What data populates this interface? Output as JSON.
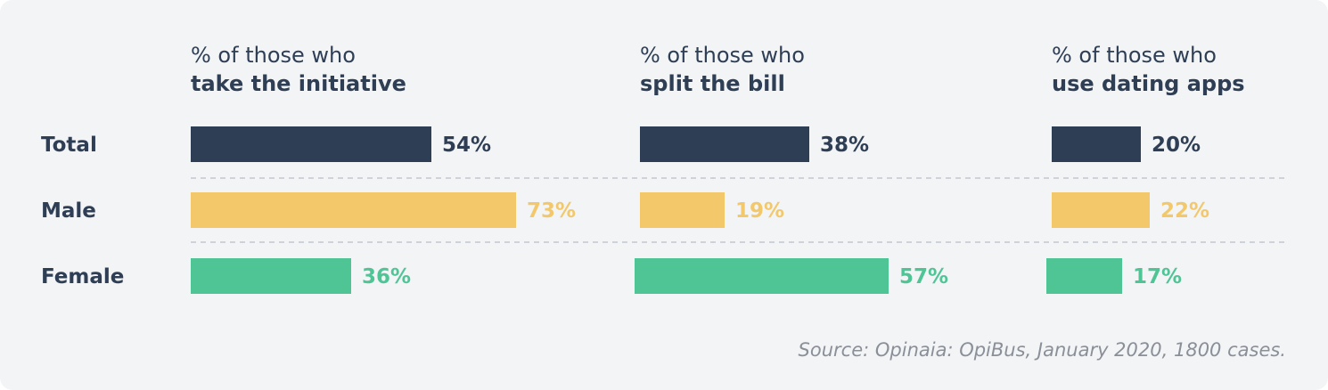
{
  "chart_data": {
    "type": "bar",
    "orientation": "horizontal",
    "categories": [
      "Total",
      "Male",
      "Female"
    ],
    "panels": [
      {
        "title_line1": "% of those who",
        "title_line2": "take the initiative",
        "values": [
          54,
          73,
          36
        ]
      },
      {
        "title_line1": "% of those who",
        "title_line2": "split the bill",
        "values": [
          38,
          19,
          57
        ]
      },
      {
        "title_line1": "% of those who",
        "title_line2": "use dating apps",
        "values": [
          20,
          22,
          17
        ]
      }
    ],
    "value_labels": [
      [
        "54%",
        "73%",
        "36%"
      ],
      [
        "38%",
        "19%",
        "57%"
      ],
      [
        "20%",
        "22%",
        "17%"
      ]
    ],
    "colors": [
      "#2e3e55",
      "#f2c86b",
      "#4fc596"
    ],
    "value_text_colors": [
      "#2e3e55",
      "#f2c86b",
      "#4fc596"
    ],
    "unit": "%",
    "grid": false,
    "source": "Source: Opinaia: OpiBus, January 2020, 1800 cases."
  }
}
